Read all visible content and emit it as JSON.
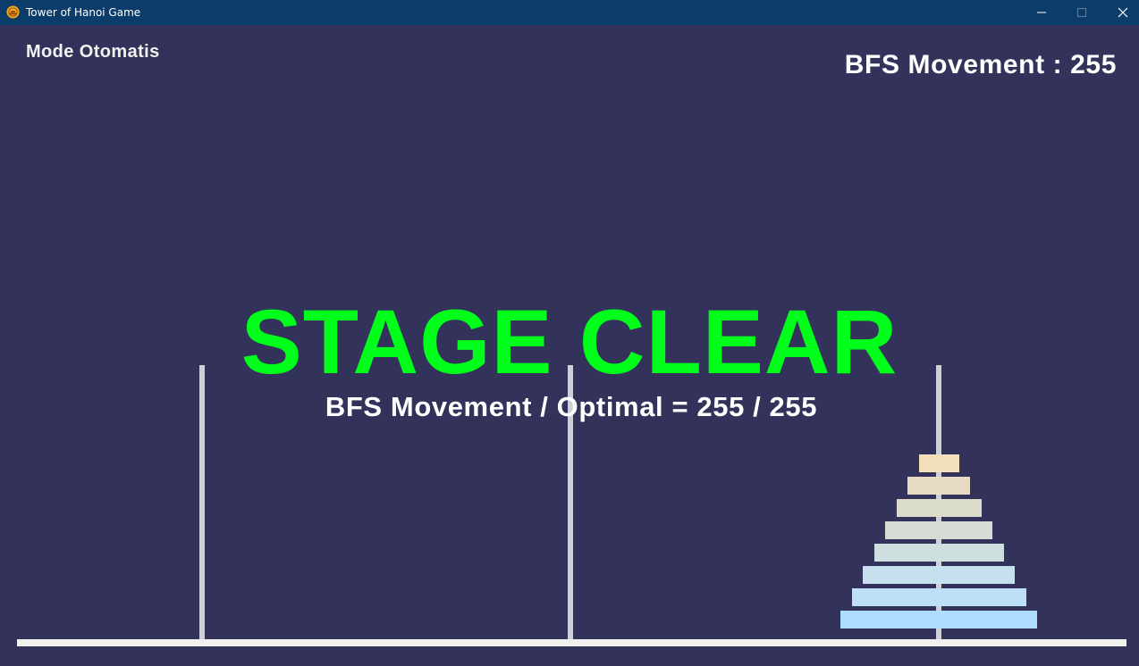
{
  "window": {
    "title": "Tower of Hanoi Game",
    "icon": "hanoi-app-icon",
    "controls": [
      "minimize-icon",
      "maximize-icon",
      "close-icon"
    ]
  },
  "game": {
    "mode_label": "Mode Otomatis",
    "moves_counter": "BFS Movement : 255",
    "status_title": "STAGE CLEAR",
    "result_text": "BFS Movement / Optimal = 255 / 255",
    "disk_count": 8,
    "disks_on_peg": [
      0,
      0,
      8
    ],
    "disk_colors": [
      "#f3dfba",
      "#e7dbc3",
      "#dcdccb",
      "#d6dcd3",
      "#cde0df",
      "#c6e0ed",
      "#bde0f6",
      "#addeff"
    ]
  },
  "colors": {
    "background": "#33325a",
    "titlebar": "#0b3c6a",
    "status_title": "#00ff1a",
    "peg": "#cfcfd6",
    "base": "#f0f0f0"
  }
}
